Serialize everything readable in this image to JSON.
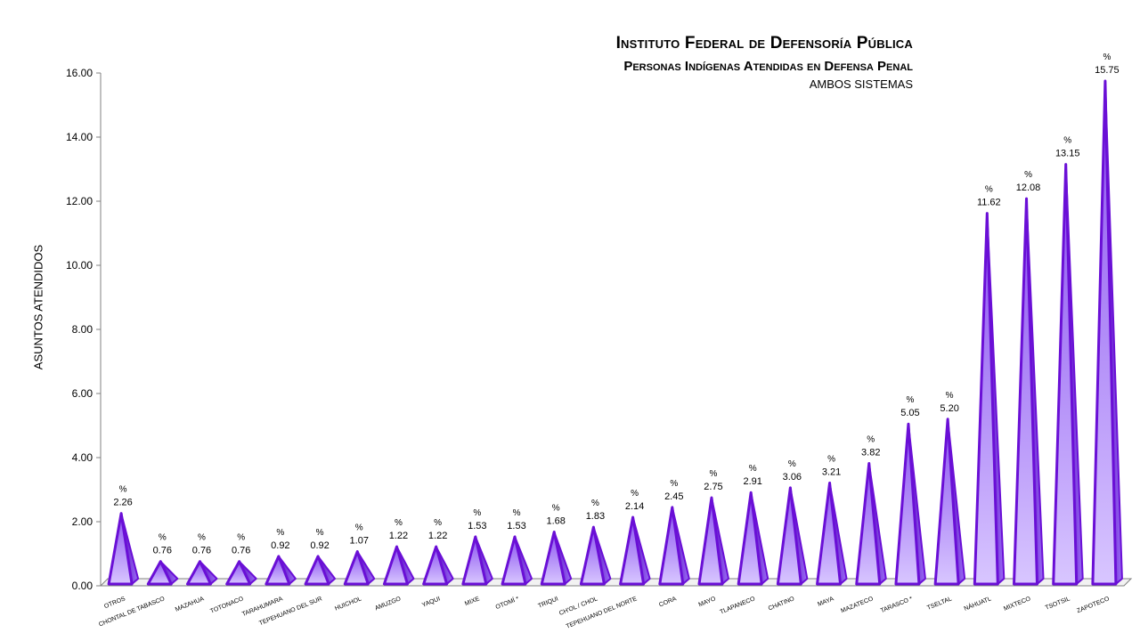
{
  "chart_data": {
    "type": "bar",
    "title": "Instituto Federal de Defensoría Pública",
    "subtitle": "Personas Indígenas Atendidas en Defensa Penal",
    "subtitle2": "AMBOS SISTEMAS",
    "ylabel": "ASUNTOS ATENDIDOS",
    "xlabel": "",
    "ylim": [
      0,
      16
    ],
    "yticks": [
      "0.00",
      "2.00",
      "4.00",
      "6.00",
      "8.00",
      "10.00",
      "12.00",
      "14.00",
      "16.00"
    ],
    "data_label_prefix": "%",
    "categories": [
      "OTROS",
      "CHONTAL DE TABASCO",
      "MAZAHUA",
      "TOTONACO",
      "TARAHUMARA",
      "TEPEHUANO DEL SUR",
      "HUICHOL",
      "AMUZGO",
      "YAQUI",
      "MIXE",
      "OTOMÍ *",
      "TRIQUI",
      "CH'OL / CHOL",
      "TEPEHUANO DEL NORTE",
      "CORA",
      "MAYO",
      "TLAPANECO",
      "CHATINO",
      "MAYA",
      "MAZATECO",
      "TARASCO *",
      "TSELTAL",
      "NÁHUATL",
      "MIXTECO",
      "TSOTSIL",
      "ZAPOTECO"
    ],
    "values": [
      2.26,
      0.76,
      0.76,
      0.76,
      0.92,
      0.92,
      1.07,
      1.22,
      1.22,
      1.53,
      1.53,
      1.68,
      1.83,
      2.14,
      2.45,
      2.75,
      2.91,
      3.06,
      3.21,
      3.82,
      5.05,
      5.2,
      11.62,
      12.08,
      13.15,
      15.75
    ],
    "value_labels": [
      "2.26",
      "0.76",
      "0.76",
      "0.76",
      "0.92",
      "0.92",
      "1.07",
      "1.22",
      "1.22",
      "1.53",
      "1.53",
      "1.68",
      "1.83",
      "2.14",
      "2.45",
      "2.75",
      "2.91",
      "3.06",
      "3.21",
      "3.82",
      "5.05",
      "5.20",
      "11.62",
      "12.08",
      "13.15",
      "15.75"
    ],
    "grid": false,
    "colors": {
      "bar_stroke": "#6a0fd6",
      "bar_fill_light": "#d8c6ff",
      "bar_fill_dark": "#8a52f0",
      "axis": "#808080"
    }
  }
}
